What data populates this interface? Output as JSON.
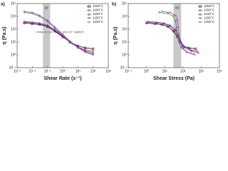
{
  "chart_data": [
    {
      "type": "line",
      "panel_label": "a)",
      "x_label": "Shear Rate (s⁻¹)",
      "y_label": "η (Pa.s)",
      "band_label": "γ̇c",
      "shaded_region": [
        0.05,
        0.15
      ],
      "equation": "Cross: η = η∞ + (η0 − η∞) / (1 + (γ̇/γ̇c)ⁿ)",
      "xscale": "log",
      "yscale": "log",
      "legend": "upper right",
      "xlim": [
        0.001,
        1000
      ],
      "ylim": [
        0.1,
        10000
      ],
      "xticks": [
        {
          "value": 0.001,
          "label": "10⁻³"
        },
        {
          "value": 0.01,
          "label": "10⁻²"
        },
        {
          "value": 0.1,
          "label": "10⁻¹"
        },
        {
          "value": 1,
          "label": "10⁰"
        },
        {
          "value": 10,
          "label": "10¹"
        },
        {
          "value": 100,
          "label": "10²"
        },
        {
          "value": 1000,
          "label": "10³"
        }
      ],
      "yticks": [
        {
          "value": 0.1,
          "label": "10⁻¹"
        },
        {
          "value": 1,
          "label": "10⁰"
        },
        {
          "value": 10,
          "label": "10¹"
        },
        {
          "value": 100,
          "label": "10²"
        },
        {
          "value": 1000,
          "label": "10³"
        },
        {
          "value": 10000,
          "label": "10⁴"
        }
      ],
      "series": [
        {
          "name": "1000°C",
          "color": "#111111",
          "marker": "s",
          "x": [
            0.003,
            0.01,
            0.03,
            0.1,
            0.3,
            1,
            3,
            10,
            30,
            100
          ],
          "values": [
            300,
            260,
            230,
            160,
            70,
            25,
            10,
            5,
            3.5,
            3
          ]
        },
        {
          "name": "1050°C",
          "color": "#e0202a",
          "marker": "o",
          "x": [
            0.003,
            0.01,
            0.03,
            0.1,
            0.3,
            1,
            3,
            10,
            30,
            100
          ],
          "values": [
            350,
            300,
            260,
            180,
            80,
            28,
            9,
            4,
            2.5,
            2
          ]
        },
        {
          "name": "1100°C",
          "color": "#2a3fd6",
          "marker": "^",
          "x": [
            0.003,
            0.01,
            0.03,
            0.1,
            0.3,
            1,
            3,
            10,
            30,
            100
          ],
          "values": [
            400,
            350,
            300,
            200,
            90,
            30,
            10,
            4,
            2,
            1.5
          ]
        },
        {
          "name": "1150°C",
          "color": "#1f9a3a",
          "marker": "v",
          "x": [
            0.003,
            0.01,
            0.03,
            0.1,
            0.3,
            1,
            3,
            10,
            30,
            100
          ],
          "values": [
            2000,
            1700,
            1000,
            400,
            120,
            35,
            10,
            3.5,
            1.8,
            1.1
          ]
        },
        {
          "name": "1200°C",
          "color": "#d22ad6",
          "marker": "d",
          "x": [
            0.003,
            0.01,
            0.03,
            0.1,
            0.3,
            1,
            3,
            10,
            30,
            100
          ],
          "values": [
            2500,
            2000,
            1200,
            500,
            150,
            40,
            12,
            4,
            1.6,
            1
          ]
        }
      ]
    },
    {
      "type": "line",
      "panel_label": "b)",
      "x_label": "Shear Stress (Pa)",
      "y_label": "η (Pa.s)",
      "band_label": "σc",
      "shaded_region": [
        30,
        80
      ],
      "xscale": "log",
      "yscale": "log",
      "legend": "upper right",
      "xlim": [
        0.1,
        10000
      ],
      "ylim": [
        0.1,
        10000
      ],
      "xticks": [
        {
          "value": 0.1,
          "label": "10⁻¹"
        },
        {
          "value": 1,
          "label": "10⁰"
        },
        {
          "value": 10,
          "label": "10¹"
        },
        {
          "value": 100,
          "label": "10²"
        },
        {
          "value": 1000,
          "label": "10³"
        },
        {
          "value": 10000,
          "label": "10⁴"
        }
      ],
      "yticks": [
        {
          "value": 0.1,
          "label": "10⁻¹"
        },
        {
          "value": 1,
          "label": "10⁰"
        },
        {
          "value": 10,
          "label": "10¹"
        },
        {
          "value": 100,
          "label": "10²"
        },
        {
          "value": 1000,
          "label": "10³"
        },
        {
          "value": 10000,
          "label": "10⁴"
        }
      ],
      "series": [
        {
          "name": "1000°C",
          "color": "#111111",
          "marker": "s",
          "x": [
            1,
            3,
            7,
            15,
            30,
            50,
            70,
            100,
            200,
            500
          ],
          "values": [
            300,
            260,
            230,
            160,
            70,
            25,
            10,
            5,
            3.5,
            3
          ]
        },
        {
          "name": "1050°C",
          "color": "#e0202a",
          "marker": "o",
          "x": [
            1,
            3,
            8,
            18,
            35,
            55,
            75,
            110,
            250,
            600
          ],
          "values": [
            350,
            300,
            260,
            180,
            80,
            28,
            9,
            4,
            2.5,
            2
          ]
        },
        {
          "name": "1100°C",
          "color": "#2a3fd6",
          "marker": "^",
          "x": [
            1.2,
            3.5,
            9,
            20,
            40,
            60,
            80,
            120,
            300,
            700
          ],
          "values": [
            400,
            350,
            300,
            200,
            90,
            30,
            10,
            4,
            2,
            1.5
          ]
        },
        {
          "name": "1150°C",
          "color": "#1f9a3a",
          "marker": "v",
          "x": [
            5,
            15,
            30,
            40,
            45,
            50,
            60,
            80,
            150,
            400
          ],
          "values": [
            2000,
            1700,
            1000,
            400,
            120,
            35,
            10,
            3.5,
            1.8,
            1.1
          ]
        },
        {
          "name": "1200°C",
          "color": "#d22ad6",
          "marker": "d",
          "x": [
            7,
            20,
            40,
            50,
            55,
            60,
            70,
            90,
            160,
            450
          ],
          "values": [
            2500,
            2000,
            1200,
            500,
            150,
            40,
            12,
            4,
            1.6,
            1
          ]
        }
      ]
    }
  ]
}
